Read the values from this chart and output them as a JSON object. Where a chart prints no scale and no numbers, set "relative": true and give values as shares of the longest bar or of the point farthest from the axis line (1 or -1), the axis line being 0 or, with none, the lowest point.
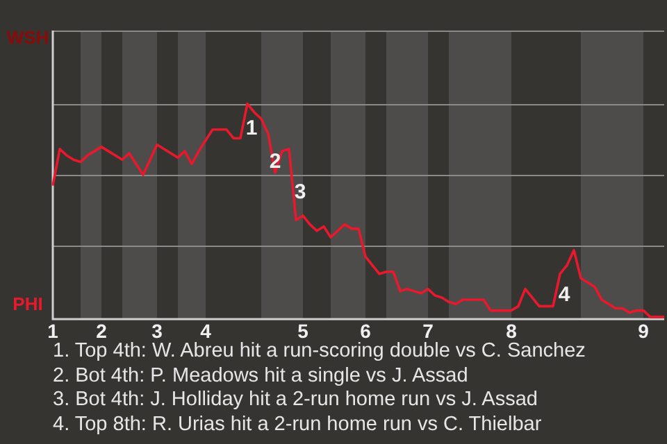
{
  "chart_data": {
    "type": "line",
    "relative": true,
    "categories": [
      "1",
      null,
      null,
      null,
      null,
      null,
      null,
      "2",
      null,
      null,
      null,
      null,
      null,
      null,
      null,
      "3",
      null,
      null,
      null,
      null,
      null,
      null,
      "4",
      null,
      null,
      null,
      null,
      null,
      null,
      null,
      null,
      null,
      null,
      null,
      null,
      null,
      "5",
      null,
      null,
      null,
      null,
      null,
      null,
      null,
      null,
      "6",
      null,
      null,
      null,
      null,
      null,
      null,
      null,
      null,
      "7",
      null,
      null,
      null,
      null,
      null,
      null,
      null,
      null,
      null,
      null,
      null,
      "8",
      null,
      null,
      null,
      null,
      null,
      null,
      null,
      null,
      null,
      null,
      null,
      null,
      null,
      null,
      null,
      null,
      null,
      null,
      "9",
      null,
      null,
      null
    ],
    "series": [
      {
        "color": "#e8192c",
        "values": [
          0.62,
          0.79,
          0.76,
          0.74,
          0.73,
          0.76,
          0.78,
          0.8,
          0.78,
          0.76,
          0.74,
          0.77,
          0.72,
          0.67,
          0.74,
          0.81,
          0.79,
          0.77,
          0.75,
          0.78,
          0.72,
          0.78,
          0.83,
          0.88,
          0.88,
          0.88,
          0.84,
          0.84,
          1,
          0.96,
          0.93,
          0.86,
          0.68,
          0.78,
          0.79,
          0.46,
          0.48,
          0.44,
          0.41,
          0.43,
          0.38,
          0.41,
          0.44,
          0.42,
          0.42,
          0.29,
          0.25,
          0.21,
          0.22,
          0.22,
          0.13,
          0.14,
          0.13,
          0.12,
          0.14,
          0.11,
          0.1,
          0.08,
          0.07,
          0.09,
          0.09,
          0.09,
          0.09,
          0.04,
          0.04,
          0.04,
          0.04,
          0.06,
          0.14,
          0.1,
          0.06,
          0.06,
          0.06,
          0.21,
          0.25,
          0.32,
          0.19,
          0.17,
          0.15,
          0.09,
          0.07,
          0.05,
          0.05,
          0.03,
          0.04,
          0.04,
          0.01,
          0.01,
          0.01
        ]
      }
    ],
    "ref_lines": [
      {
        "axis": "y",
        "value": 0.34,
        "color": "#8a8a88"
      },
      {
        "axis": "y",
        "value": 0.67,
        "color": "#8a8a88"
      },
      {
        "axis": "y",
        "value": 1,
        "color": "#8a8a88"
      }
    ],
    "marker": "none",
    "line_style": "solid",
    "legend": false,
    "annotations": [
      "WSH",
      "PHI",
      "1",
      "2",
      "3",
      "4",
      "1. Top 4th: W. Abreu hit a run-scoring double vs C. Sanchez",
      "2. Bot 4th: P. Meadows hit a single vs J. Assad",
      "3. Bot 4th: J. Holliday hit a 2-run home run vs J. Assad",
      "4. Top 8th: R. Urias hit a 2-run home run vs C. Thielbar"
    ]
  }
}
